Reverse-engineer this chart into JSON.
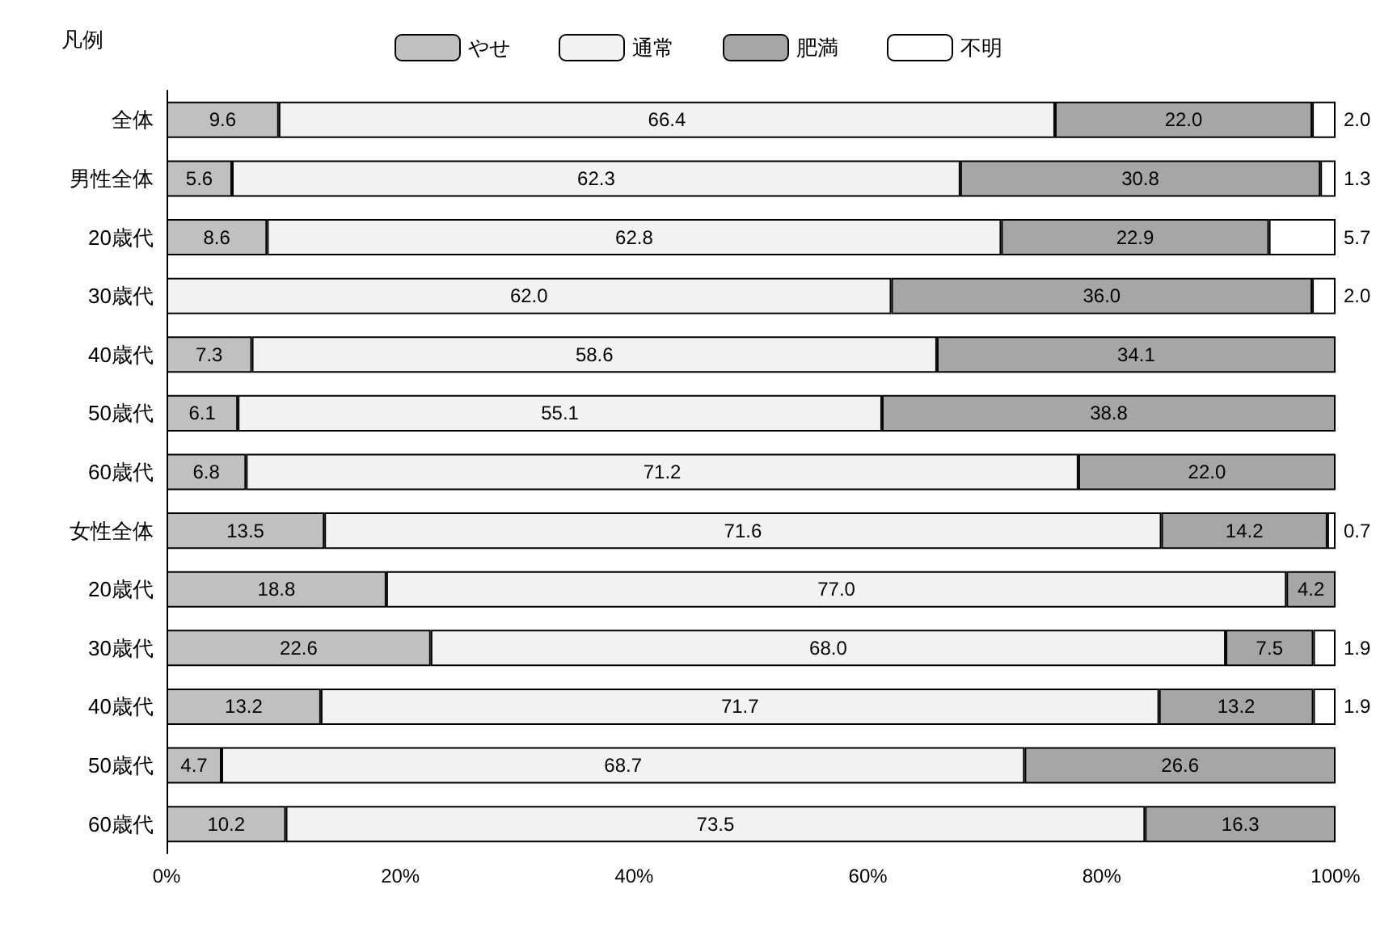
{
  "chart_data": {
    "type": "bar",
    "orientation": "horizontal",
    "stacked": true,
    "legend_title": "凡例",
    "legend": "top",
    "categories": [
      "全体",
      "男性全体",
      "20歳代",
      "30歳代",
      "40歳代",
      "50歳代",
      "60歳代",
      "女性全体",
      "20歳代",
      "30歳代",
      "40歳代",
      "50歳代",
      "60歳代"
    ],
    "series": [
      {
        "name": "やせ",
        "color": "#c0c0c0",
        "values": [
          9.6,
          5.6,
          8.6,
          null,
          7.3,
          6.1,
          6.8,
          13.5,
          18.8,
          22.6,
          13.2,
          4.7,
          10.2
        ],
        "value_labels": [
          "9.6",
          "5.6",
          "8.6",
          null,
          "7.3",
          "6.1",
          "6.8",
          "13.5",
          "18.8",
          "22.6",
          "13.2",
          "4.7",
          "10.2"
        ]
      },
      {
        "name": "通常",
        "color": "#f2f2f2",
        "values": [
          66.4,
          62.3,
          62.8,
          62.0,
          58.6,
          55.1,
          71.2,
          71.6,
          77.0,
          68.0,
          71.7,
          68.7,
          73.5
        ],
        "value_labels": [
          "66.4",
          "62.3",
          "62.8",
          "62.0",
          "58.6",
          "55.1",
          "71.2",
          "71.6",
          "77.0",
          "68.0",
          "71.7",
          "68.7",
          "73.5"
        ]
      },
      {
        "name": "肥満",
        "color": "#a6a6a6",
        "values": [
          22.0,
          30.8,
          22.9,
          36.0,
          34.1,
          38.8,
          22.0,
          14.2,
          4.2,
          7.5,
          13.2,
          26.6,
          16.3
        ],
        "value_labels": [
          "22.0",
          "30.8",
          "22.9",
          "36.0",
          "34.1",
          "38.8",
          "22.0",
          "14.2",
          "4.2",
          "7.5",
          "13.2",
          "26.6",
          "16.3"
        ]
      },
      {
        "name": "不明",
        "color": "#ffffff",
        "values": [
          2.0,
          1.3,
          5.7,
          2.0,
          null,
          null,
          null,
          0.7,
          null,
          1.9,
          1.9,
          null,
          null
        ],
        "value_labels": [
          "2.0",
          "1.3",
          "5.7",
          "2.0",
          null,
          null,
          null,
          "0.7",
          null,
          "1.9",
          "1.9",
          null,
          null
        ]
      }
    ],
    "xlim": [
      0,
      100
    ],
    "xticks": [
      {
        "value": 0,
        "label": "0%"
      },
      {
        "value": 20,
        "label": "20%"
      },
      {
        "value": 40,
        "label": "40%"
      },
      {
        "value": 60,
        "label": "60%"
      },
      {
        "value": 80,
        "label": "80%"
      },
      {
        "value": 100,
        "label": "100%"
      }
    ],
    "grid": false
  }
}
